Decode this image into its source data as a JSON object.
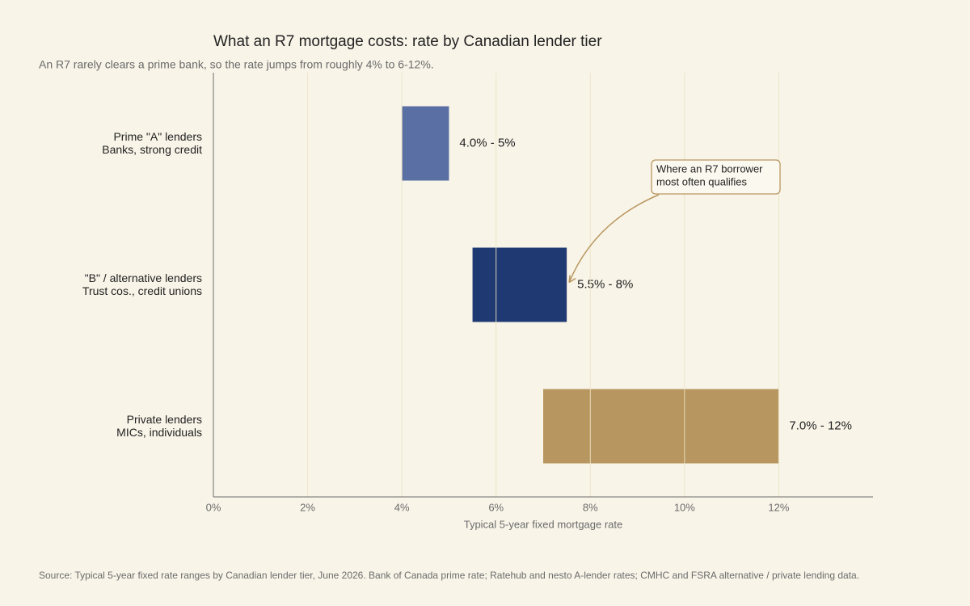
{
  "chart_data": {
    "type": "range-bar",
    "title": "What an R7 mortgage costs: rate by Canadian lender tier",
    "subtitle": "An R7 rarely clears a prime bank, so the rate jumps from roughly 4% to 6-12%.",
    "categories": [
      "Prime \"A\" lenders",
      "\"B\" / alternative lenders",
      "Private lenders"
    ],
    "category_notes": [
      "Banks, strong credit",
      "Trust cos., credit unions",
      "MICs, individuals"
    ],
    "low": [
      4.0,
      5.5,
      7.0
    ],
    "high": [
      5.0,
      7.5,
      12.0
    ],
    "value_labels": [
      "4.0% - 5%",
      "5.5% - 8%",
      "7.0% - 12%"
    ],
    "colors": [
      "#5a6fa3",
      "#1f3a73",
      "#b8965f"
    ],
    "xlabel": "Typical 5-year fixed mortgage rate",
    "xlim": [
      0,
      14
    ],
    "xticks": [
      {
        "value": 0,
        "label": "0%"
      },
      {
        "value": 2,
        "label": "2%"
      },
      {
        "value": 4,
        "label": "4%"
      },
      {
        "value": 6,
        "label": "6%"
      },
      {
        "value": 8,
        "label": "8%"
      },
      {
        "value": 10,
        "label": "10%"
      },
      {
        "value": 12,
        "label": "12%"
      }
    ],
    "grid": true,
    "annotation": {
      "lines": [
        "Where an R7 borrower",
        "most often qualifies"
      ]
    },
    "source": "Source: Typical 5-year fixed rate ranges by Canadian lender tier, June 2026. Bank of Canada prime rate; Ratehub and nesto A-lender rates; CMHC and FSRA alternative / private lending data."
  }
}
